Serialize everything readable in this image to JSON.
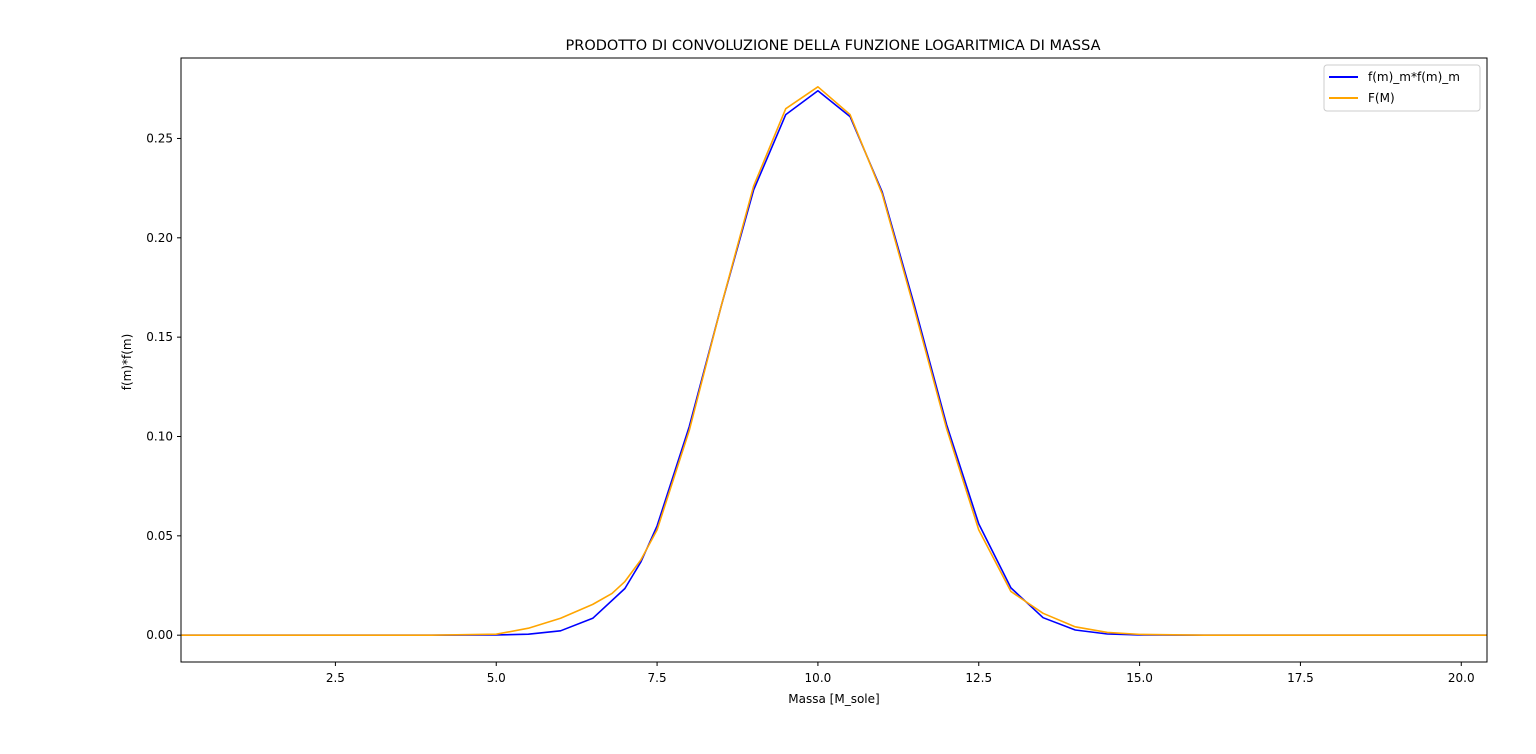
{
  "chart_data": {
    "type": "line",
    "title": "PRODOTTO DI CONVOLUZIONE DELLA FUNZIONE LOGARITMICA DI MASSA",
    "xlabel": "Massa [M_sole]",
    "ylabel": "f(m)*f(m)",
    "xlim": [
      0.1,
      20.4
    ],
    "ylim": [
      -0.0135,
      0.2905
    ],
    "xticks": [
      "2.5",
      "5.0",
      "7.5",
      "10.0",
      "12.5",
      "15.0",
      "17.5",
      "20.0"
    ],
    "yticks": [
      "0.00",
      "0.05",
      "0.10",
      "0.15",
      "0.20",
      "0.25"
    ],
    "grid": false,
    "legend_position": "top-right",
    "series": [
      {
        "name": "f(m)_m*f(m)_m",
        "color": "#0000ff",
        "x": [
          0.1,
          1,
          2,
          3,
          4,
          5,
          5.5,
          6,
          6.5,
          7,
          7.25,
          7.5,
          8,
          8.5,
          9,
          9.5,
          10,
          10.5,
          11,
          11.5,
          12,
          12.5,
          13,
          13.5,
          14,
          14.5,
          15,
          16,
          17,
          18,
          19,
          20.4
        ],
        "y": [
          0,
          0,
          0,
          0,
          0,
          0.0001,
          0.0005,
          0.0022,
          0.0085,
          0.0235,
          0.037,
          0.055,
          0.105,
          0.166,
          0.224,
          0.262,
          0.274,
          0.261,
          0.223,
          0.166,
          0.106,
          0.056,
          0.0238,
          0.0088,
          0.0026,
          0.0006,
          0.0001,
          0,
          0,
          0,
          0,
          0
        ]
      },
      {
        "name": "F(M)",
        "color": "#ffa500",
        "x": [
          0.1,
          1,
          2,
          3,
          4,
          5,
          5.5,
          6,
          6.5,
          6.8,
          7,
          7.25,
          7.5,
          8,
          8.5,
          9,
          9.5,
          10,
          10.5,
          11,
          11.5,
          12,
          12.5,
          13,
          13.5,
          14,
          14.5,
          15,
          16,
          17,
          18,
          19,
          20.4
        ],
        "y": [
          0,
          0,
          0,
          0,
          0,
          0.0005,
          0.0035,
          0.0085,
          0.0155,
          0.021,
          0.027,
          0.038,
          0.053,
          0.103,
          0.166,
          0.226,
          0.265,
          0.276,
          0.262,
          0.222,
          0.164,
          0.104,
          0.053,
          0.022,
          0.011,
          0.0042,
          0.0014,
          0.0004,
          0,
          0,
          0,
          0,
          0
        ]
      }
    ]
  }
}
